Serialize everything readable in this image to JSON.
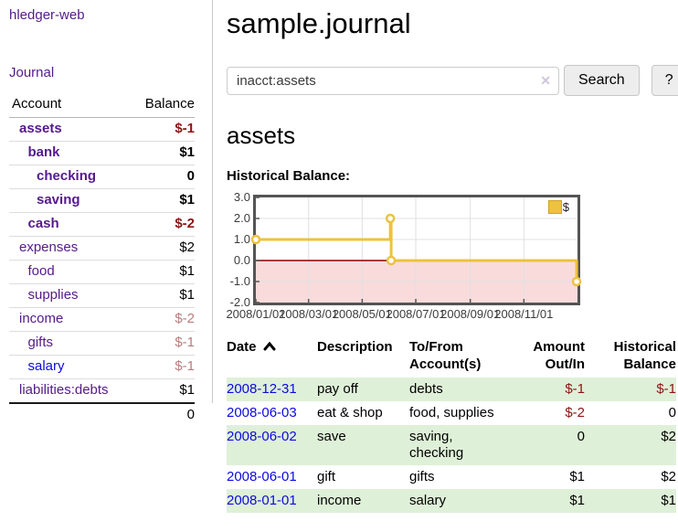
{
  "app": {
    "title": "hledger-web"
  },
  "sidebar": {
    "journal_label": "Journal",
    "accounts_table": {
      "headers": {
        "account": "Account",
        "balance": "Balance"
      },
      "rows": [
        {
          "name": "assets",
          "balance": "$-1",
          "level": 0,
          "name_style": "bold-purple",
          "balance_style": "bold-negative"
        },
        {
          "name": "bank",
          "balance": "$1",
          "level": 1,
          "name_style": "bold-purple",
          "balance_style": "bold"
        },
        {
          "name": "checking",
          "balance": "0",
          "level": 2,
          "name_style": "bold-purple",
          "balance_style": "bold"
        },
        {
          "name": "saving",
          "balance": "$1",
          "level": 2,
          "name_style": "bold-purple",
          "balance_style": "bold"
        },
        {
          "name": "cash",
          "balance": "$-2",
          "level": 1,
          "name_style": "bold-purple",
          "balance_style": "bold-negative"
        },
        {
          "name": "expenses",
          "balance": "$2",
          "level": 0,
          "name_style": "purple",
          "balance_style": "plain"
        },
        {
          "name": "food",
          "balance": "$1",
          "level": 1,
          "name_style": "purple",
          "balance_style": "plain"
        },
        {
          "name": "supplies",
          "balance": "$1",
          "level": 1,
          "name_style": "purple",
          "balance_style": "plain"
        },
        {
          "name": "income",
          "balance": "$-2",
          "level": 0,
          "name_style": "purple",
          "balance_style": "muted-negative"
        },
        {
          "name": "gifts",
          "balance": "$-1",
          "level": 1,
          "name_style": "purple",
          "balance_style": "muted-negative"
        },
        {
          "name": "salary",
          "balance": "$-1",
          "level": 1,
          "name_style": "blue",
          "balance_style": "muted-negative"
        },
        {
          "name": "liabilities:debts",
          "balance": "$1",
          "level": 0,
          "name_style": "purple",
          "balance_style": "plain"
        }
      ],
      "total": "0"
    }
  },
  "header": {
    "title": "sample.journal"
  },
  "search": {
    "value": "inacct:assets",
    "clear_icon": "✕",
    "button_label": "Search",
    "help_label": "?"
  },
  "account_page": {
    "title": "assets",
    "chart_label": "Historical Balance:"
  },
  "chart_data": {
    "type": "line",
    "subtype": "step-with-markers",
    "title": "Historical Balance:",
    "series": [
      {
        "name": "$",
        "color": "#edc240",
        "points": [
          [
            "2008-01-01",
            1
          ],
          [
            "2008-06-02",
            2
          ],
          [
            "2008-06-03",
            0
          ],
          [
            "2008-12-31",
            -1
          ]
        ]
      }
    ],
    "ylim": [
      -2,
      3
    ],
    "yticks": [
      "3.0",
      "2.0",
      "1.0",
      "0.0",
      "-1.0",
      "-2.0"
    ],
    "xlim": [
      "2008-01-01",
      "2009-01-01"
    ],
    "xticks": [
      "2008/01/01",
      "2008/03/01",
      "2008/05/01",
      "2008/07/01",
      "2008/09/01",
      "2008/11/01"
    ],
    "grid": true,
    "gridline_color": "#e0e0e0",
    "zero_line_color": "#8b0000",
    "negative_region_color": "#f9dbdb",
    "border_color": "#545454",
    "legend": {
      "label": "$",
      "position": "top-right",
      "swatch_color": "#edc240"
    }
  },
  "register": {
    "columns": [
      {
        "label": "Date",
        "sort": "asc"
      },
      {
        "label": "Description"
      },
      {
        "label": "To/From Account(s)"
      },
      {
        "label": "Amount Out/In",
        "align": "right"
      },
      {
        "label": "Historical Balance",
        "align": "right"
      }
    ],
    "rows": [
      {
        "date": "2008-12-31",
        "description": "pay off",
        "accounts": "debts",
        "amount": "$-1",
        "amount_neg": true,
        "balance": "$-1",
        "balance_neg": true,
        "highlight": true
      },
      {
        "date": "2008-06-03",
        "description": "eat & shop",
        "accounts": "food, supplies",
        "amount": "$-2",
        "amount_neg": true,
        "balance": "0",
        "balance_neg": false,
        "highlight": false
      },
      {
        "date": "2008-06-02",
        "description": "save",
        "accounts": "saving, checking",
        "amount": "0",
        "amount_neg": false,
        "balance": "$2",
        "balance_neg": false,
        "highlight": true
      },
      {
        "date": "2008-06-01",
        "description": "gift",
        "accounts": "gifts",
        "amount": "$1",
        "amount_neg": false,
        "balance": "$2",
        "balance_neg": false,
        "highlight": false
      },
      {
        "date": "2008-01-01",
        "description": "income",
        "accounts": "salary",
        "amount": "$1",
        "amount_neg": false,
        "balance": "$1",
        "balance_neg": false,
        "highlight": true
      }
    ]
  },
  "colors": {
    "link_purple": "#551a8b",
    "link_blue": "#0b0be0",
    "negative_strong": "#8c1414",
    "negative_muted": "#b87c7c",
    "row_highlight_green": "#dff0d8",
    "series_gold": "#edc240",
    "negative_region_pink": "#f9dbdb"
  }
}
